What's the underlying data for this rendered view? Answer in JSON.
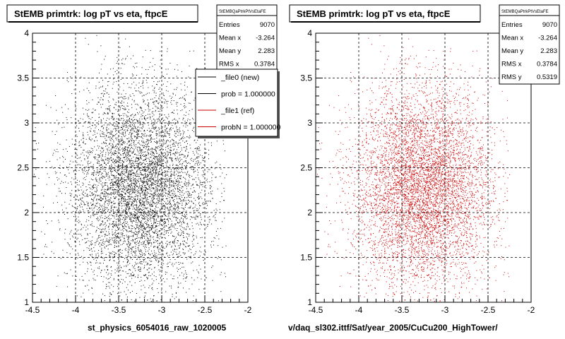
{
  "chart_data": [
    {
      "type": "scatter",
      "title": "StEMB primtrk: log pT vs eta, ftpcE",
      "xlabel": "st_physics_6054016_raw_1020005",
      "ylabel": "",
      "xlim": [
        -4.5,
        -2
      ],
      "ylim": [
        1,
        4
      ],
      "x_ticks": [
        "-4.5",
        "-4",
        "-3.5",
        "-3",
        "-2.5",
        "-2"
      ],
      "y_ticks": [
        "1",
        "1.5",
        "2",
        "2.5",
        "3",
        "3.5",
        "4"
      ],
      "grid": true,
      "point_color": "#000000",
      "stats": {
        "name": "StEMBQaPtrkPtVsEtaFE",
        "rows": [
          {
            "label": "Entries",
            "value": "9070"
          },
          {
            "label": "Mean x",
            "value": "-3.264"
          },
          {
            "label": "Mean y",
            "value": "2.283"
          },
          {
            "label": "RMS x",
            "value": "0.3784"
          }
        ]
      },
      "legend": {
        "placement": "top-right",
        "entries": [
          {
            "label": "_file0 (new)",
            "color": "#000000"
          },
          {
            "label": "prob = 1.000000",
            "color": "#000000"
          },
          {
            "label": "_file1 (ref)",
            "color": "#cc0000"
          },
          {
            "label": "probN = 1.000000",
            "color": "#cc0000"
          }
        ]
      },
      "distribution": {
        "entries": 9070,
        "mean_x": -3.264,
        "mean_y": 2.283,
        "rms_x": 0.3784,
        "rms_y": 0.5319
      }
    },
    {
      "type": "scatter",
      "title": "StEMB primtrk: log pT vs eta, ftpcE",
      "xlabel": "v/daq_sl302.ittf/Sat/year_2005/CuCu200_HighTower/",
      "ylabel": "",
      "xlim": [
        -4.5,
        -2
      ],
      "ylim": [
        1,
        4
      ],
      "x_ticks": [
        "-4.5",
        "-4",
        "-3.5",
        "-3",
        "-2.5",
        "-2"
      ],
      "y_ticks": [
        "1",
        "1.5",
        "2",
        "2.5",
        "3",
        "3.5",
        "4"
      ],
      "grid": true,
      "point_color": "#cc0000",
      "stats": {
        "name": "StEMBQaPtrkPtVsEtaFE",
        "rows": [
          {
            "label": "Entries",
            "value": "9070"
          },
          {
            "label": "Mean x",
            "value": "-3.264"
          },
          {
            "label": "Mean y",
            "value": "2.283"
          },
          {
            "label": "RMS x",
            "value": "0.3784"
          },
          {
            "label": "RMS y",
            "value": "0.5319"
          }
        ]
      },
      "distribution": {
        "entries": 9070,
        "mean_x": -3.264,
        "mean_y": 2.283,
        "rms_x": 0.3784,
        "rms_y": 0.5319
      }
    }
  ]
}
